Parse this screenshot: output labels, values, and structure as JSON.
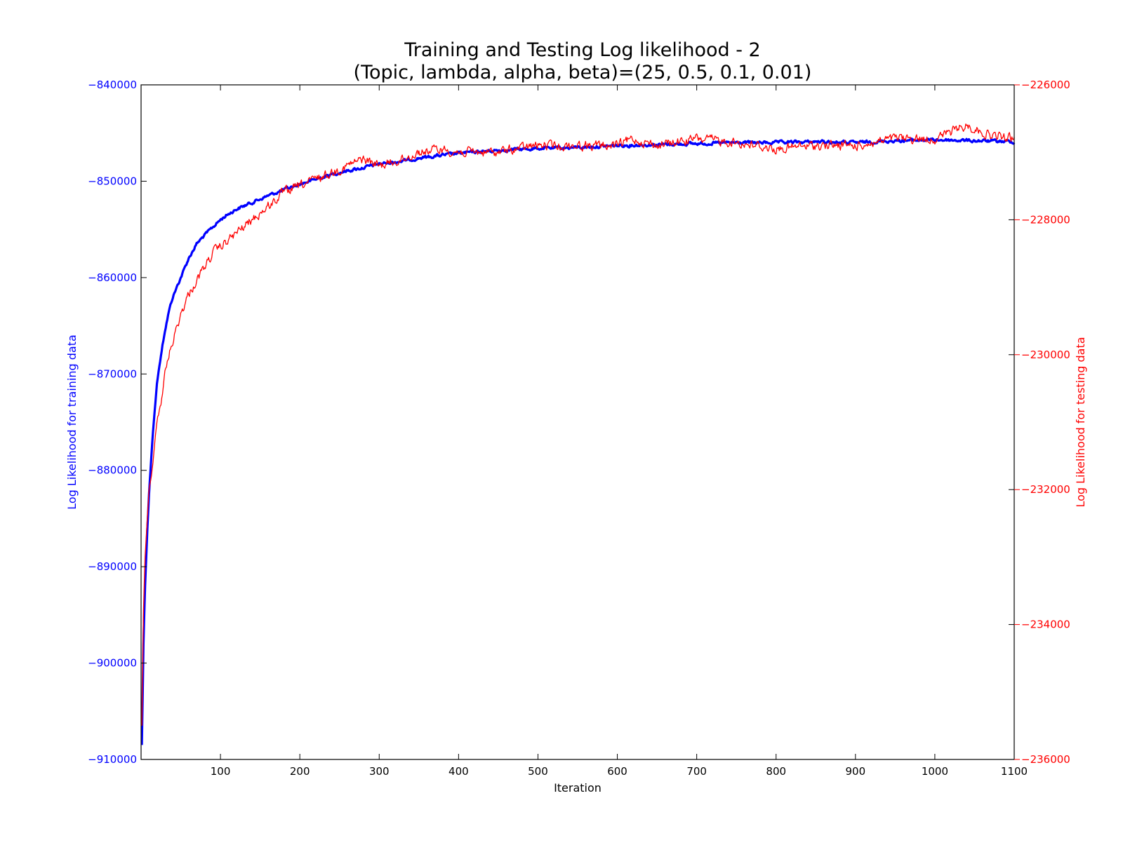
{
  "chart_data": {
    "type": "line",
    "title": "Training and Testing Log likelihood - 2",
    "subtitle": "(Topic, lambda, alpha, beta)=(25, 0.5, 0.1, 0.01)",
    "xlabel": "Iteration",
    "ylabel_left": "Log Likelihood for training data",
    "ylabel_right": "Log Likelihood for testing data",
    "xlim": [
      0,
      1100
    ],
    "ylim_left": [
      -910000,
      -840000
    ],
    "ylim_right": [
      -236000,
      -226000
    ],
    "x_ticks": [
      100,
      200,
      300,
      400,
      500,
      600,
      700,
      800,
      900,
      1000,
      1100
    ],
    "x_tick_labels": [
      "100",
      "200",
      "300",
      "400",
      "500",
      "600",
      "700",
      "800",
      "900",
      "1000",
      "1100"
    ],
    "y_left_ticks": [
      -840000,
      -850000,
      -860000,
      -870000,
      -880000,
      -890000,
      -900000,
      -910000
    ],
    "y_left_tick_labels": [
      "−840000",
      "−850000",
      "−860000",
      "−870000",
      "−880000",
      "−890000",
      "−900000",
      "−910000"
    ],
    "y_right_ticks": [
      -226000,
      -228000,
      -230000,
      -232000,
      -234000,
      -236000
    ],
    "y_right_tick_labels": [
      "−226000",
      "−228000",
      "−230000",
      "−232000",
      "−234000",
      "−236000"
    ],
    "grid": false,
    "legend": "none",
    "series": [
      {
        "axis": "left",
        "color": "#0000ff",
        "line_width": "thick",
        "points": [
          [
            1,
            -908500
          ],
          [
            3,
            -898000
          ],
          [
            5,
            -892000
          ],
          [
            8,
            -886000
          ],
          [
            10,
            -882500
          ],
          [
            13,
            -878500
          ],
          [
            15,
            -876000
          ],
          [
            18,
            -873000
          ],
          [
            20,
            -871000
          ],
          [
            25,
            -868000
          ],
          [
            30,
            -865500
          ],
          [
            35,
            -863500
          ],
          [
            40,
            -862000
          ],
          [
            45,
            -861000
          ],
          [
            50,
            -860000
          ],
          [
            60,
            -858000
          ],
          [
            70,
            -856500
          ],
          [
            80,
            -855600
          ],
          [
            90,
            -854800
          ],
          [
            100,
            -854000
          ],
          [
            110,
            -853400
          ],
          [
            120,
            -852900
          ],
          [
            140,
            -852200
          ],
          [
            160,
            -851500
          ],
          [
            180,
            -850900
          ],
          [
            200,
            -850300
          ],
          [
            220,
            -849800
          ],
          [
            240,
            -849300
          ],
          [
            260,
            -848900
          ],
          [
            280,
            -848600
          ],
          [
            300,
            -848200
          ],
          [
            330,
            -847900
          ],
          [
            350,
            -847600
          ],
          [
            380,
            -847300
          ],
          [
            400,
            -847100
          ],
          [
            450,
            -846800
          ],
          [
            500,
            -846600
          ],
          [
            550,
            -846500
          ],
          [
            600,
            -846300
          ],
          [
            650,
            -846200
          ],
          [
            700,
            -846100
          ],
          [
            750,
            -846000
          ],
          [
            800,
            -846000
          ],
          [
            850,
            -845900
          ],
          [
            900,
            -846000
          ],
          [
            950,
            -845800
          ],
          [
            1000,
            -845700
          ],
          [
            1050,
            -845800
          ],
          [
            1100,
            -845900
          ]
        ]
      },
      {
        "axis": "right",
        "color": "#ff0000",
        "line_width": "thin",
        "points": [
          [
            1,
            -235500
          ],
          [
            3,
            -233800
          ],
          [
            5,
            -233000
          ],
          [
            8,
            -232400
          ],
          [
            10,
            -232000
          ],
          [
            13,
            -231800
          ],
          [
            15,
            -231600
          ],
          [
            18,
            -231200
          ],
          [
            20,
            -231000
          ],
          [
            25,
            -230700
          ],
          [
            30,
            -230300
          ],
          [
            35,
            -230000
          ],
          [
            40,
            -229800
          ],
          [
            45,
            -229600
          ],
          [
            50,
            -229400
          ],
          [
            60,
            -229100
          ],
          [
            70,
            -228900
          ],
          [
            80,
            -228700
          ],
          [
            90,
            -228500
          ],
          [
            100,
            -228400
          ],
          [
            110,
            -228300
          ],
          [
            120,
            -228200
          ],
          [
            140,
            -228000
          ],
          [
            160,
            -227800
          ],
          [
            180,
            -227600
          ],
          [
            200,
            -227500
          ],
          [
            220,
            -227400
          ],
          [
            240,
            -227300
          ],
          [
            260,
            -227200
          ],
          [
            280,
            -227100
          ],
          [
            300,
            -227200
          ],
          [
            330,
            -227100
          ],
          [
            350,
            -227000
          ],
          [
            380,
            -226950
          ],
          [
            400,
            -227000
          ],
          [
            450,
            -227000
          ],
          [
            500,
            -226900
          ],
          [
            550,
            -226900
          ],
          [
            600,
            -226900
          ],
          [
            620,
            -226800
          ],
          [
            650,
            -226900
          ],
          [
            700,
            -226800
          ],
          [
            750,
            -226850
          ],
          [
            800,
            -226950
          ],
          [
            850,
            -226900
          ],
          [
            900,
            -226900
          ],
          [
            950,
            -226800
          ],
          [
            1000,
            -226800
          ],
          [
            1040,
            -226600
          ],
          [
            1070,
            -226750
          ],
          [
            1100,
            -226800
          ]
        ]
      }
    ]
  }
}
